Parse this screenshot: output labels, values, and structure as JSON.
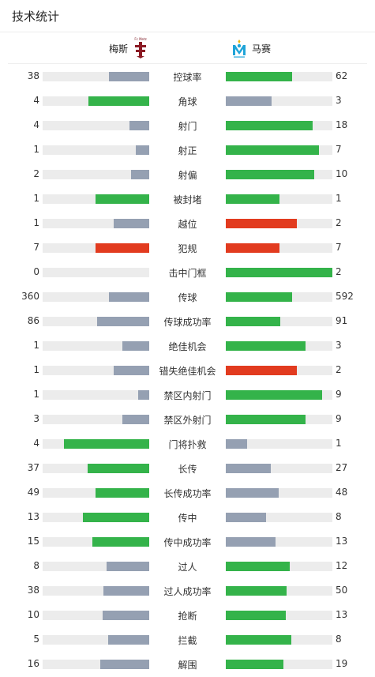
{
  "header": {
    "title": "技术统计"
  },
  "teams": {
    "home": {
      "name": "梅斯",
      "logo_text": "Fc Metz"
    },
    "away": {
      "name": "马赛"
    }
  },
  "colors": {
    "win": "#34b34a",
    "lose": "#95a0b2",
    "red": "#e23b1f",
    "track": "#ececec"
  },
  "stats": [
    {
      "label": "控球率",
      "home": "38",
      "away": "62",
      "home_frac": 0.38,
      "away_frac": 0.62,
      "home_color": "lose",
      "away_color": "win"
    },
    {
      "label": "角球",
      "home": "4",
      "away": "3",
      "home_frac": 0.571,
      "away_frac": 0.429,
      "home_color": "win",
      "away_color": "lose"
    },
    {
      "label": "射门",
      "home": "4",
      "away": "18",
      "home_frac": 0.182,
      "away_frac": 0.818,
      "home_color": "lose",
      "away_color": "win"
    },
    {
      "label": "射正",
      "home": "1",
      "away": "7",
      "home_frac": 0.125,
      "away_frac": 0.875,
      "home_color": "lose",
      "away_color": "win"
    },
    {
      "label": "射偏",
      "home": "2",
      "away": "10",
      "home_frac": 0.167,
      "away_frac": 0.833,
      "home_color": "lose",
      "away_color": "win"
    },
    {
      "label": "被封堵",
      "home": "1",
      "away": "1",
      "home_frac": 0.5,
      "away_frac": 0.5,
      "home_color": "win",
      "away_color": "win"
    },
    {
      "label": "越位",
      "home": "1",
      "away": "2",
      "home_frac": 0.333,
      "away_frac": 0.667,
      "home_color": "lose",
      "away_color": "red"
    },
    {
      "label": "犯规",
      "home": "7",
      "away": "7",
      "home_frac": 0.5,
      "away_frac": 0.5,
      "home_color": "red",
      "away_color": "red"
    },
    {
      "label": "击中门框",
      "home": "0",
      "away": "2",
      "home_frac": 0.0,
      "away_frac": 1.0,
      "home_color": "lose",
      "away_color": "win"
    },
    {
      "label": "传球",
      "home": "360",
      "away": "592",
      "home_frac": 0.378,
      "away_frac": 0.622,
      "home_color": "lose",
      "away_color": "win"
    },
    {
      "label": "传球成功率",
      "home": "86",
      "away": "91",
      "home_frac": 0.486,
      "away_frac": 0.514,
      "home_color": "lose",
      "away_color": "win"
    },
    {
      "label": "绝佳机会",
      "home": "1",
      "away": "3",
      "home_frac": 0.25,
      "away_frac": 0.75,
      "home_color": "lose",
      "away_color": "win"
    },
    {
      "label": "错失绝佳机会",
      "home": "1",
      "away": "2",
      "home_frac": 0.333,
      "away_frac": 0.667,
      "home_color": "lose",
      "away_color": "red"
    },
    {
      "label": "禁区内射门",
      "home": "1",
      "away": "9",
      "home_frac": 0.1,
      "away_frac": 0.9,
      "home_color": "lose",
      "away_color": "win"
    },
    {
      "label": "禁区外射门",
      "home": "3",
      "away": "9",
      "home_frac": 0.25,
      "away_frac": 0.75,
      "home_color": "lose",
      "away_color": "win"
    },
    {
      "label": "门将扑救",
      "home": "4",
      "away": "1",
      "home_frac": 0.8,
      "away_frac": 0.2,
      "home_color": "win",
      "away_color": "lose"
    },
    {
      "label": "长传",
      "home": "37",
      "away": "27",
      "home_frac": 0.578,
      "away_frac": 0.422,
      "home_color": "win",
      "away_color": "lose"
    },
    {
      "label": "长传成功率",
      "home": "49",
      "away": "48",
      "home_frac": 0.505,
      "away_frac": 0.495,
      "home_color": "win",
      "away_color": "lose"
    },
    {
      "label": "传中",
      "home": "13",
      "away": "8",
      "home_frac": 0.619,
      "away_frac": 0.381,
      "home_color": "win",
      "away_color": "lose"
    },
    {
      "label": "传中成功率",
      "home": "15",
      "away": "13",
      "home_frac": 0.536,
      "away_frac": 0.464,
      "home_color": "win",
      "away_color": "lose"
    },
    {
      "label": "过人",
      "home": "8",
      "away": "12",
      "home_frac": 0.4,
      "away_frac": 0.6,
      "home_color": "lose",
      "away_color": "win"
    },
    {
      "label": "过人成功率",
      "home": "38",
      "away": "50",
      "home_frac": 0.432,
      "away_frac": 0.568,
      "home_color": "lose",
      "away_color": "win"
    },
    {
      "label": "抢断",
      "home": "10",
      "away": "13",
      "home_frac": 0.435,
      "away_frac": 0.565,
      "home_color": "lose",
      "away_color": "win"
    },
    {
      "label": "拦截",
      "home": "5",
      "away": "8",
      "home_frac": 0.385,
      "away_frac": 0.615,
      "home_color": "lose",
      "away_color": "win"
    },
    {
      "label": "解围",
      "home": "16",
      "away": "19",
      "home_frac": 0.457,
      "away_frac": 0.543,
      "home_color": "lose",
      "away_color": "win"
    }
  ]
}
